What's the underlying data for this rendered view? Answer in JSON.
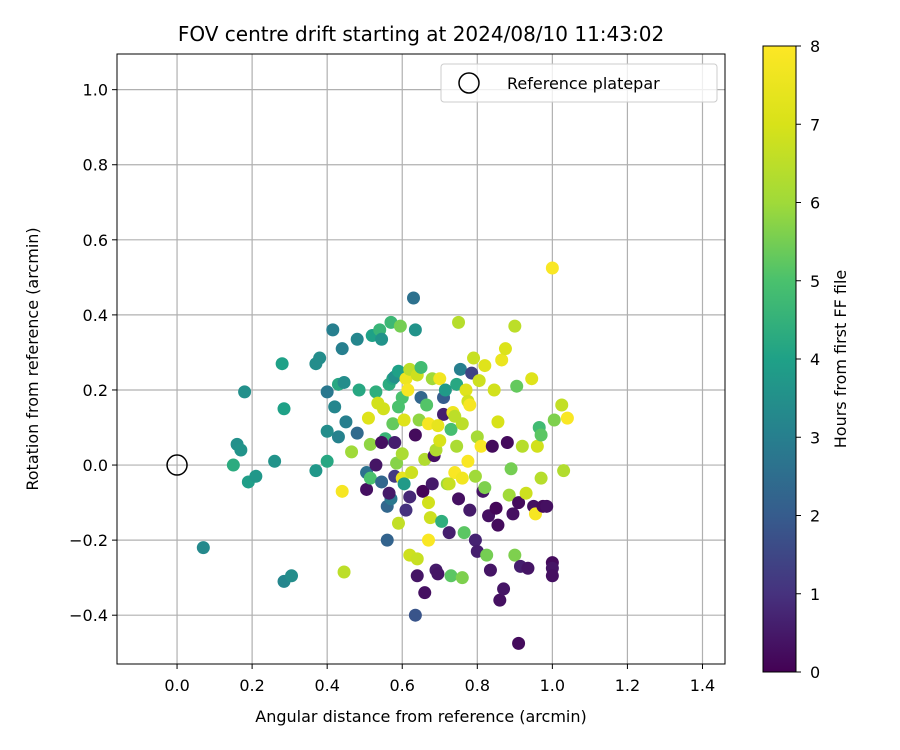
{
  "chart_data": {
    "type": "scatter",
    "title": "FOV centre drift starting at 2024/08/10 11:43:02",
    "xlabel": "Angular distance from reference (arcmin)",
    "ylabel": "Rotation from reference (arcmin)",
    "xlim": [
      -0.16,
      1.46
    ],
    "ylim": [
      -0.53,
      1.095
    ],
    "xticks": [
      0.0,
      0.2,
      0.4,
      0.6,
      0.8,
      1.0,
      1.2,
      1.4
    ],
    "xtick_labels": [
      "0.0",
      "0.2",
      "0.4",
      "0.6",
      "0.8",
      "1.0",
      "1.2",
      "1.4"
    ],
    "yticks": [
      -0.4,
      -0.2,
      0.0,
      0.2,
      0.4,
      0.6,
      0.8,
      1.0
    ],
    "ytick_labels": [
      "−0.4",
      "−0.2",
      "0.0",
      "0.2",
      "0.4",
      "0.6",
      "0.8",
      "1.0"
    ],
    "grid": true,
    "legend": {
      "placement": "top-right",
      "entries": [
        "Reference platepar"
      ]
    },
    "reference_point": {
      "name": "Reference platepar",
      "x": 0.0,
      "y": 0.0,
      "marker": "open-circle"
    },
    "colorbar": {
      "label": "Hours from first FF file",
      "colormap": "viridis",
      "range": [
        0,
        8
      ],
      "ticks": [
        0,
        1,
        2,
        3,
        4,
        5,
        6,
        7,
        8
      ],
      "tick_labels": [
        "0",
        "1",
        "2",
        "3",
        "4",
        "5",
        "6",
        "7",
        "8"
      ]
    },
    "points": [
      [
        0.07,
        -0.22,
        3.3
      ],
      [
        0.15,
        0.0,
        4.3
      ],
      [
        0.16,
        0.055,
        3.5
      ],
      [
        0.17,
        0.04,
        3.6
      ],
      [
        0.18,
        0.195,
        3.5
      ],
      [
        0.19,
        -0.045,
        3.9
      ],
      [
        0.21,
        -0.03,
        3.7
      ],
      [
        0.26,
        0.01,
        3.6
      ],
      [
        0.28,
        0.27,
        4.0
      ],
      [
        0.285,
        0.15,
        4.0
      ],
      [
        0.285,
        -0.31,
        3.2
      ],
      [
        0.305,
        -0.295,
        3.4
      ],
      [
        0.37,
        -0.015,
        3.7
      ],
      [
        0.37,
        0.27,
        3.4
      ],
      [
        0.38,
        0.285,
        3.4
      ],
      [
        0.4,
        0.01,
        4.2
      ],
      [
        0.4,
        0.09,
        3.4
      ],
      [
        0.4,
        0.195,
        2.8
      ],
      [
        0.415,
        0.36,
        3.0
      ],
      [
        0.42,
        0.155,
        3.2
      ],
      [
        0.43,
        0.075,
        3.1
      ],
      [
        0.43,
        0.215,
        4.2
      ],
      [
        0.44,
        0.31,
        3.0
      ],
      [
        0.445,
        0.22,
        3.4
      ],
      [
        0.45,
        0.115,
        3.0
      ],
      [
        0.44,
        -0.07,
        7.8
      ],
      [
        0.445,
        -0.285,
        6.5
      ],
      [
        0.465,
        0.035,
        6.0
      ],
      [
        0.48,
        0.085,
        2.4
      ],
      [
        0.48,
        0.335,
        3.2
      ],
      [
        0.485,
        0.2,
        4.2
      ],
      [
        0.505,
        -0.02,
        2.6
      ],
      [
        0.505,
        -0.065,
        0.3
      ],
      [
        0.51,
        0.125,
        7.2
      ],
      [
        0.515,
        -0.035,
        5.0
      ],
      [
        0.515,
        0.055,
        5.8
      ],
      [
        0.52,
        0.345,
        4.0
      ],
      [
        0.53,
        0.0,
        0.4
      ],
      [
        0.53,
        0.195,
        4.4
      ],
      [
        0.535,
        0.165,
        6.9
      ],
      [
        0.54,
        0.36,
        4.6
      ],
      [
        0.545,
        0.335,
        3.6
      ],
      [
        0.545,
        -0.045,
        2.3
      ],
      [
        0.55,
        0.15,
        6.9
      ],
      [
        0.555,
        0.07,
        4.6
      ],
      [
        0.56,
        -0.11,
        2.3
      ],
      [
        0.56,
        -0.2,
        2.2
      ],
      [
        0.565,
        0.215,
        4.3
      ],
      [
        0.57,
        0.38,
        4.7
      ],
      [
        0.57,
        -0.09,
        2.8
      ],
      [
        0.575,
        0.23,
        4.1
      ],
      [
        0.575,
        0.11,
        5.3
      ],
      [
        0.58,
        0.235,
        3.5
      ],
      [
        0.58,
        -0.03,
        1.2
      ],
      [
        0.58,
        0.06,
        0.6
      ],
      [
        0.585,
        0.005,
        5.7
      ],
      [
        0.59,
        0.25,
        4.0
      ],
      [
        0.59,
        0.155,
        5.0
      ],
      [
        0.59,
        -0.155,
        6.6
      ],
      [
        0.595,
        0.37,
        5.5
      ],
      [
        0.6,
        0.18,
        5.0
      ],
      [
        0.6,
        0.03,
        6.2
      ],
      [
        0.6,
        -0.035,
        7.4
      ],
      [
        0.605,
        -0.05,
        3.8
      ],
      [
        0.605,
        0.12,
        7.2
      ],
      [
        0.61,
        0.23,
        7.6
      ],
      [
        0.61,
        -0.12,
        1.0
      ],
      [
        0.615,
        0.2,
        7.8
      ],
      [
        0.62,
        0.255,
        6.5
      ],
      [
        0.62,
        -0.085,
        0.8
      ],
      [
        0.62,
        -0.24,
        6.8
      ],
      [
        0.63,
        0.445,
        2.6
      ],
      [
        0.635,
        0.36,
        3.6
      ],
      [
        0.635,
        0.08,
        0.2
      ],
      [
        0.635,
        -0.4,
        1.8
      ],
      [
        0.64,
        0.24,
        6.8
      ],
      [
        0.64,
        -0.25,
        6.7
      ],
      [
        0.64,
        -0.295,
        0.4
      ],
      [
        0.645,
        0.12,
        5.8
      ],
      [
        0.65,
        0.18,
        2.3
      ],
      [
        0.65,
        0.26,
        4.8
      ],
      [
        0.655,
        -0.07,
        0.1
      ],
      [
        0.66,
        -0.34,
        0.3
      ],
      [
        0.66,
        0.015,
        6.3
      ],
      [
        0.665,
        0.16,
        5.1
      ],
      [
        0.67,
        -0.2,
        7.9
      ],
      [
        0.67,
        0.11,
        7.8
      ],
      [
        0.675,
        -0.14,
        6.8
      ],
      [
        0.68,
        0.23,
        6.0
      ],
      [
        0.68,
        -0.05,
        0.5
      ],
      [
        0.685,
        0.025,
        0.3
      ],
      [
        0.69,
        -0.28,
        0.5
      ],
      [
        0.69,
        0.04,
        6.3
      ],
      [
        0.695,
        -0.29,
        0.4
      ],
      [
        0.7,
        0.23,
        7.7
      ],
      [
        0.7,
        0.065,
        7.0
      ],
      [
        0.705,
        -0.15,
        4.4
      ],
      [
        0.71,
        0.18,
        2.0
      ],
      [
        0.71,
        0.135,
        0.6
      ],
      [
        0.715,
        0.2,
        3.8
      ],
      [
        0.72,
        -0.05,
        6.0
      ],
      [
        0.725,
        -0.18,
        0.6
      ],
      [
        0.73,
        0.095,
        4.9
      ],
      [
        0.73,
        -0.295,
        5.2
      ],
      [
        0.735,
        0.14,
        7.6
      ],
      [
        0.74,
        -0.02,
        7.9
      ],
      [
        0.745,
        0.215,
        4.2
      ],
      [
        0.745,
        0.05,
        6.2
      ],
      [
        0.75,
        0.38,
        6.4
      ],
      [
        0.75,
        -0.09,
        0.3
      ],
      [
        0.755,
        0.255,
        3.0
      ],
      [
        0.76,
        0.11,
        6.5
      ],
      [
        0.76,
        -0.3,
        5.6
      ],
      [
        0.765,
        -0.18,
        5.2
      ],
      [
        0.77,
        0.2,
        7.2
      ],
      [
        0.775,
        0.17,
        6.9
      ],
      [
        0.78,
        0.16,
        7.8
      ],
      [
        0.78,
        -0.12,
        0.5
      ],
      [
        0.785,
        0.245,
        1.4
      ],
      [
        0.79,
        0.285,
        6.7
      ],
      [
        0.795,
        -0.2,
        0.7
      ],
      [
        0.8,
        -0.23,
        0.6
      ],
      [
        0.8,
        0.075,
        6.1
      ],
      [
        0.805,
        0.225,
        6.8
      ],
      [
        0.81,
        0.05,
        7.9
      ],
      [
        0.815,
        -0.07,
        0.4
      ],
      [
        0.82,
        0.265,
        7.2
      ],
      [
        0.825,
        -0.24,
        5.5
      ],
      [
        0.83,
        -0.135,
        0.3
      ],
      [
        0.835,
        -0.28,
        0.4
      ],
      [
        0.84,
        0.05,
        0.2
      ],
      [
        0.845,
        0.2,
        6.9
      ],
      [
        0.85,
        -0.115,
        0.1
      ],
      [
        0.855,
        0.115,
        7.0
      ],
      [
        0.86,
        -0.36,
        0.3
      ],
      [
        0.865,
        0.28,
        7.5
      ],
      [
        0.87,
        -0.33,
        0.4
      ],
      [
        0.875,
        0.31,
        7.1
      ],
      [
        0.88,
        0.06,
        0.2
      ],
      [
        0.885,
        -0.08,
        6.0
      ],
      [
        0.89,
        -0.01,
        5.5
      ],
      [
        0.895,
        -0.13,
        0.3
      ],
      [
        0.9,
        0.37,
        6.5
      ],
      [
        0.9,
        -0.24,
        5.6
      ],
      [
        0.905,
        0.21,
        5.3
      ],
      [
        0.91,
        -0.1,
        0.2
      ],
      [
        0.91,
        -0.475,
        0.2
      ],
      [
        0.915,
        -0.27,
        0.6
      ],
      [
        0.92,
        0.05,
        6.4
      ],
      [
        0.93,
        -0.075,
        6.8
      ],
      [
        0.935,
        -0.275,
        0.4
      ],
      [
        0.945,
        0.23,
        7.2
      ],
      [
        0.95,
        -0.11,
        0.3
      ],
      [
        0.955,
        -0.13,
        7.8
      ],
      [
        0.96,
        0.05,
        6.9
      ],
      [
        0.965,
        0.1,
        4.8
      ],
      [
        0.97,
        0.08,
        5.2
      ],
      [
        0.97,
        -0.035,
        6.4
      ],
      [
        0.975,
        -0.11,
        0.2
      ],
      [
        0.985,
        -0.11,
        0.3
      ],
      [
        1.0,
        0.525,
        7.9
      ],
      [
        1.0,
        -0.26,
        0.2
      ],
      [
        1.0,
        -0.275,
        0.4
      ],
      [
        1.0,
        -0.295,
        0.3
      ],
      [
        1.005,
        0.12,
        5.6
      ],
      [
        1.025,
        0.16,
        6.6
      ],
      [
        1.03,
        -0.015,
        6.3
      ],
      [
        1.04,
        0.125,
        7.9
      ],
      [
        0.545,
        0.06,
        0.3
      ],
      [
        0.565,
        -0.075,
        0.5
      ],
      [
        0.625,
        -0.02,
        6.8
      ],
      [
        0.67,
        -0.1,
        6.9
      ],
      [
        0.695,
        0.105,
        7.4
      ],
      [
        0.725,
        -0.05,
        6.7
      ],
      [
        0.74,
        0.13,
        6.5
      ],
      [
        0.76,
        -0.035,
        7.7
      ],
      [
        0.775,
        0.01,
        7.9
      ],
      [
        0.795,
        -0.03,
        6.0
      ],
      [
        0.82,
        -0.06,
        5.6
      ],
      [
        0.855,
        -0.16,
        0.2
      ]
    ]
  }
}
